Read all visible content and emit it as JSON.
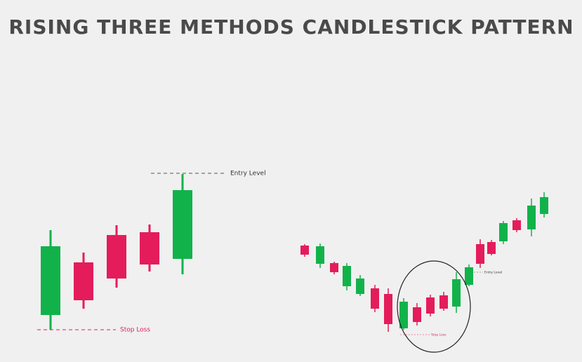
{
  "header": {
    "title": "RISING THREE METHODS CANDLESTICK PATTERN"
  },
  "pattern": {
    "entry_label": "Entry Level",
    "stop_label": "Stop Loss"
  },
  "example": {
    "entry_label": "Entry Level",
    "stop_label": "Stop Loss"
  }
}
